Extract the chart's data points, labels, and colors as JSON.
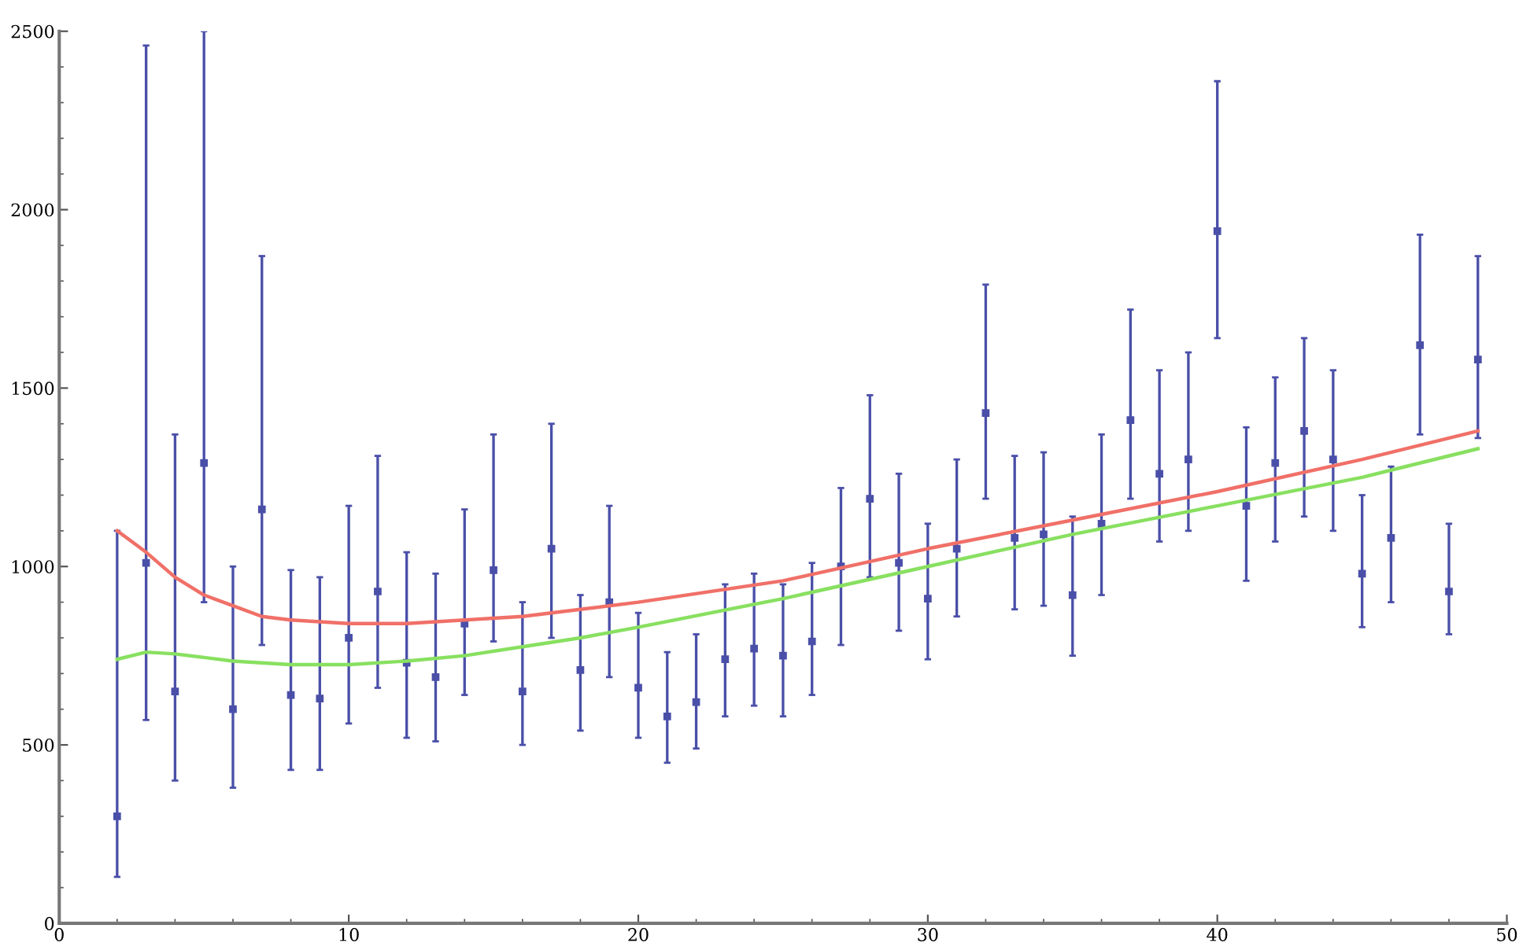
{
  "chart_data": {
    "type": "scatter",
    "xlim": [
      0,
      50
    ],
    "ylim": [
      0,
      2500
    ],
    "xticks": [
      0,
      10,
      20,
      30,
      40,
      50
    ],
    "yticks": [
      0,
      500,
      1000,
      1500,
      2000,
      2500
    ],
    "grid": false,
    "legend": false,
    "series": [
      {
        "color": "#4a4fa8",
        "marker": "square",
        "x": [
          2,
          3,
          4,
          5,
          6,
          7,
          8,
          9,
          10,
          11,
          12,
          13,
          14,
          15,
          16,
          17,
          18,
          19,
          20,
          21,
          22,
          23,
          24,
          25,
          26,
          27,
          28,
          29,
          30,
          31,
          32,
          33,
          34,
          35,
          36,
          37,
          38,
          39,
          40,
          41,
          42,
          43,
          44,
          45,
          46,
          47,
          48,
          49
        ],
        "values": [
          300,
          1010,
          650,
          1290,
          600,
          1160,
          640,
          630,
          800,
          930,
          730,
          690,
          840,
          990,
          650,
          1050,
          710,
          900,
          660,
          580,
          620,
          740,
          770,
          750,
          790,
          1000,
          1190,
          1010,
          910,
          1050,
          1430,
          1080,
          1090,
          920,
          1120,
          1410,
          1260,
          1300,
          1940,
          1170,
          1290,
          1380,
          1300,
          980,
          1080,
          1620,
          930,
          1580
        ],
        "errors": [
          [
            130,
            1100
          ],
          [
            570,
            2460
          ],
          [
            400,
            1370
          ],
          [
            900,
            2500
          ],
          [
            380,
            1000
          ],
          [
            780,
            1870
          ],
          [
            430,
            990
          ],
          [
            430,
            970
          ],
          [
            560,
            1170
          ],
          [
            660,
            1310
          ],
          [
            520,
            1040
          ],
          [
            510,
            980
          ],
          [
            640,
            1160
          ],
          [
            790,
            1370
          ],
          [
            500,
            900
          ],
          [
            800,
            1400
          ],
          [
            540,
            920
          ],
          [
            690,
            1170
          ],
          [
            520,
            870
          ],
          [
            450,
            760
          ],
          [
            490,
            810
          ],
          [
            580,
            950
          ],
          [
            610,
            980
          ],
          [
            580,
            950
          ],
          [
            640,
            1010
          ],
          [
            780,
            1220
          ],
          [
            970,
            1480
          ],
          [
            820,
            1260
          ],
          [
            740,
            1120
          ],
          [
            860,
            1300
          ],
          [
            1190,
            1790
          ],
          [
            880,
            1310
          ],
          [
            890,
            1320
          ],
          [
            750,
            1140
          ],
          [
            920,
            1370
          ],
          [
            1190,
            1720
          ],
          [
            1070,
            1550
          ],
          [
            1100,
            1600
          ],
          [
            1640,
            2360
          ],
          [
            960,
            1390
          ],
          [
            1070,
            1530
          ],
          [
            1140,
            1640
          ],
          [
            1100,
            1550
          ],
          [
            830,
            1200
          ],
          [
            900,
            1280
          ],
          [
            1370,
            1930
          ],
          [
            810,
            1120
          ],
          [
            1360,
            1870
          ]
        ]
      },
      {
        "type": "line",
        "color": "#f07068",
        "line_style": "solid",
        "marker": "none",
        "x": [
          2,
          3,
          4,
          5,
          6,
          7,
          8,
          10,
          12,
          14,
          16,
          18,
          20,
          25,
          30,
          35,
          40,
          45,
          49
        ],
        "values": [
          1100,
          1040,
          970,
          920,
          890,
          860,
          850,
          840,
          840,
          850,
          860,
          880,
          900,
          960,
          1050,
          1130,
          1210,
          1300,
          1380
        ]
      },
      {
        "type": "line",
        "color": "#88e060",
        "line_style": "solid",
        "marker": "none",
        "x": [
          2,
          3,
          4,
          5,
          6,
          8,
          10,
          12,
          14,
          16,
          18,
          20,
          25,
          30,
          35,
          40,
          45,
          49
        ],
        "values": [
          740,
          760,
          755,
          745,
          735,
          725,
          725,
          735,
          750,
          775,
          800,
          830,
          910,
          1000,
          1090,
          1170,
          1250,
          1330
        ]
      }
    ]
  }
}
